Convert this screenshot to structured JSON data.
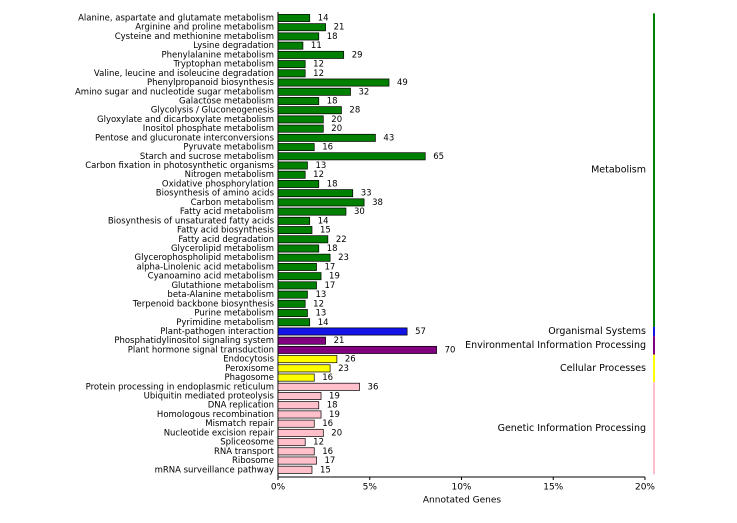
{
  "chart_data": {
    "type": "bar",
    "orientation": "horizontal",
    "xlabel": "Annotated Genes",
    "xlim": [
      0,
      162
    ],
    "xticks": [
      {
        "value": 0,
        "label": "0%"
      },
      {
        "value": 40.5,
        "label": "5%"
      },
      {
        "value": 81,
        "label": "10%"
      },
      {
        "value": 121.5,
        "label": "15%"
      },
      {
        "value": 162,
        "label": "20%"
      }
    ],
    "groups": [
      {
        "name": "Metabolism",
        "color": "#008000",
        "categories": [
          "Alanine, aspartate and glutamate metabolism",
          "Arginine and proline metabolism",
          "Cysteine and methionine metabolism",
          "Lysine degradation",
          "Phenylalanine metabolism",
          "Tryptophan metabolism",
          "Valine, leucine and isoleucine degradation",
          "Phenylpropanoid biosynthesis",
          "Amino sugar and nucleotide sugar metabolism",
          "Galactose metabolism",
          "Glycolysis / Gluconeogenesis",
          "Glyoxylate and dicarboxylate metabolism",
          "Inositol phosphate metabolism",
          "Pentose and glucuronate interconversions",
          "Pyruvate metabolism",
          "Starch and sucrose metabolism",
          "Carbon fixation in photosynthetic organisms",
          "Nitrogen metabolism",
          "Oxidative phosphorylation",
          "Biosynthesis of amino acids",
          "Carbon metabolism",
          "Fatty acid metabolism",
          "Biosynthesis of unsaturated fatty acids",
          "Fatty acid biosynthesis",
          "Fatty acid degradation",
          "Glycerolipid metabolism",
          "Glycerophospholipid metabolism",
          "alpha-Linolenic acid metabolism",
          "Cyanoamino acid metabolism",
          "Glutathione metabolism",
          "beta-Alanine metabolism",
          "Terpenoid backbone biosynthesis",
          "Purine metabolism",
          "Pyrimidine metabolism"
        ],
        "values": [
          14,
          21,
          18,
          11,
          29,
          12,
          12,
          49,
          32,
          18,
          28,
          20,
          20,
          43,
          16,
          65,
          13,
          12,
          18,
          33,
          38,
          30,
          14,
          15,
          22,
          18,
          23,
          17,
          19,
          17,
          13,
          12,
          13,
          14
        ]
      },
      {
        "name": "Organismal Systems",
        "color": "#1414e6",
        "categories": [
          "Plant-pathogen interaction"
        ],
        "values": [
          57
        ]
      },
      {
        "name": "Environmental Information Processing",
        "color": "#800080",
        "categories": [
          "Phosphatidylinositol signaling system",
          "Plant hormone signal transduction"
        ],
        "values": [
          21,
          70
        ]
      },
      {
        "name": "Cellular Processes",
        "color": "#ffff00",
        "categories": [
          "Endocytosis",
          "Peroxisome",
          "Phagosome"
        ],
        "values": [
          26,
          23,
          16
        ]
      },
      {
        "name": "Genetic Information Processing",
        "color": "#ffc0cb",
        "categories": [
          "Protein processing in endoplasmic reticulum",
          "Ubiquitin mediated proteolysis",
          "DNA replication",
          "Homologous recombination",
          "Mismatch repair",
          "Nucleotide excision repair",
          "Spliceosome",
          "RNA transport",
          "Ribosome",
          "mRNA surveillance pathway"
        ],
        "values": [
          36,
          19,
          18,
          19,
          16,
          20,
          12,
          16,
          17,
          15
        ]
      }
    ]
  }
}
